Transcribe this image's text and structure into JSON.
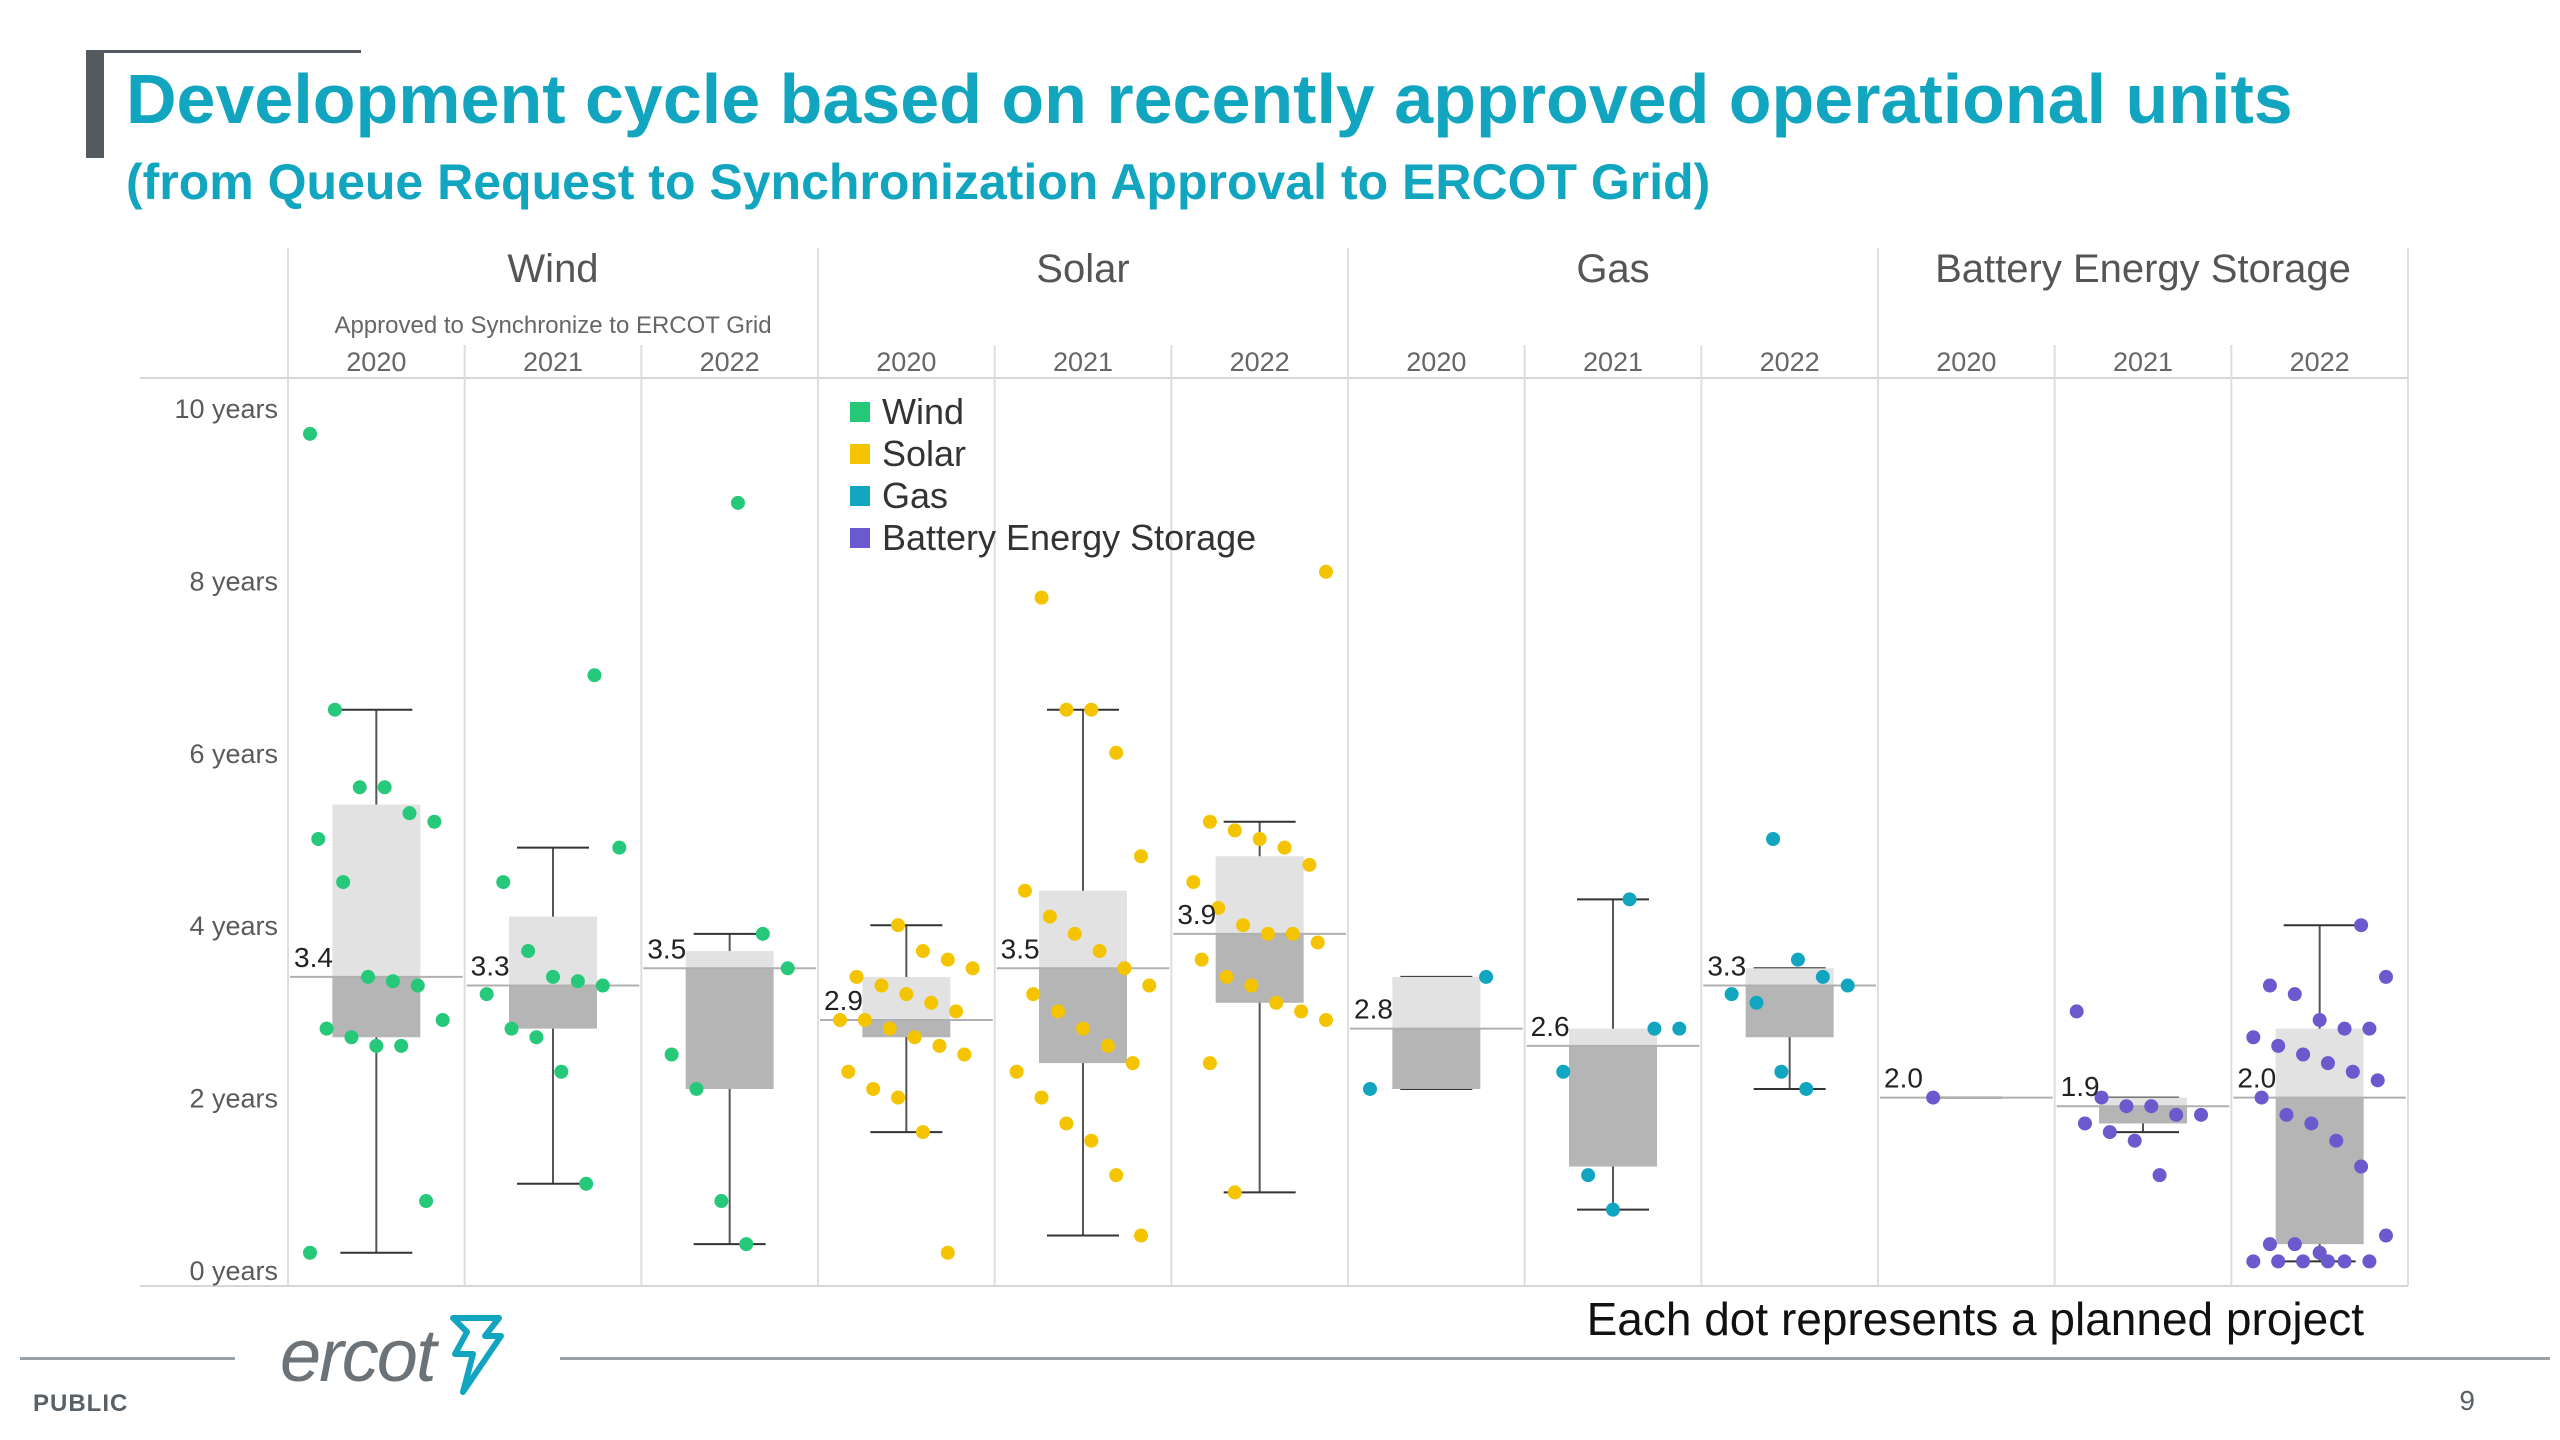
{
  "header": {
    "title": "Development cycle based on recently approved operational units",
    "subtitle": "(from Queue Request to Synchronization Approval to ERCOT Grid)"
  },
  "footer": {
    "note": "Each dot represents a planned project",
    "logo_text": "ercot",
    "classification": "PUBLIC",
    "page_number": "9"
  },
  "chart_data": {
    "type": "box",
    "title": "",
    "xlabel": "",
    "ylabel": "",
    "ylim": [
      0,
      10
    ],
    "y_ticks": [
      0,
      2,
      4,
      6,
      8,
      10
    ],
    "y_tick_labels": [
      "0 years",
      "2 years",
      "4 years",
      "6 years",
      "8 years",
      "10 years"
    ],
    "grid": true,
    "group_annotation": "Approved to Synchronize to ERCOT Grid",
    "legend": {
      "position": "top-center",
      "entries": [
        {
          "name": "Wind",
          "color": "#26c97a"
        },
        {
          "name": "Solar",
          "color": "#f5c400"
        },
        {
          "name": "Gas",
          "color": "#12a5c0"
        },
        {
          "name": "Battery Energy Storage",
          "color": "#6a5acd"
        }
      ]
    },
    "groups": [
      {
        "name": "Wind",
        "color": "#26c97a",
        "years": [
          {
            "year": "2020",
            "median": 3.4,
            "q1": 2.7,
            "q3": 5.4,
            "whisker_low": 0.2,
            "whisker_high": 6.5,
            "points": [
              9.7,
              6.5,
              5.6,
              5.6,
              5.3,
              5.2,
              5.0,
              4.5,
              3.4,
              3.35,
              3.3,
              2.9,
              2.8,
              2.7,
              2.6,
              2.6,
              0.8,
              0.2
            ]
          },
          {
            "year": "2021",
            "median": 3.3,
            "q1": 2.8,
            "q3": 4.1,
            "whisker_low": 1.0,
            "whisker_high": 4.9,
            "points": [
              6.9,
              4.9,
              4.5,
              3.7,
              3.4,
              3.35,
              3.3,
              3.2,
              2.8,
              2.7,
              2.3,
              1.0
            ]
          },
          {
            "year": "2022",
            "median": 3.5,
            "q1": 2.1,
            "q3": 3.7,
            "whisker_low": 0.3,
            "whisker_high": 3.9,
            "points": [
              8.9,
              3.9,
              3.5,
              2.5,
              2.1,
              0.8,
              0.3
            ]
          }
        ]
      },
      {
        "name": "Solar",
        "color": "#f5c400",
        "years": [
          {
            "year": "2020",
            "median": 2.9,
            "q1": 2.7,
            "q3": 3.4,
            "whisker_low": 1.6,
            "whisker_high": 4.0,
            "points": [
              4.0,
              3.7,
              3.6,
              3.5,
              3.4,
              3.3,
              3.2,
              3.1,
              3.0,
              2.9,
              2.9,
              2.8,
              2.7,
              2.6,
              2.5,
              2.3,
              2.1,
              2.0,
              1.6,
              0.2
            ]
          },
          {
            "year": "2021",
            "median": 3.5,
            "q1": 2.4,
            "q3": 4.4,
            "whisker_low": 0.4,
            "whisker_high": 6.5,
            "points": [
              7.8,
              6.5,
              6.5,
              6.0,
              4.8,
              4.4,
              4.1,
              3.9,
              3.7,
              3.5,
              3.3,
              3.2,
              3.0,
              2.8,
              2.6,
              2.4,
              2.3,
              2.0,
              1.7,
              1.5,
              1.1,
              0.4
            ]
          },
          {
            "year": "2022",
            "median": 3.9,
            "q1": 3.1,
            "q3": 4.8,
            "whisker_low": 0.9,
            "whisker_high": 5.2,
            "points": [
              8.1,
              5.2,
              5.1,
              5.0,
              4.9,
              4.7,
              4.5,
              4.2,
              4.0,
              3.9,
              3.9,
              3.8,
              3.6,
              3.4,
              3.3,
              3.1,
              3.0,
              2.9,
              2.4,
              0.9
            ]
          }
        ]
      },
      {
        "name": "Gas",
        "color": "#12a5c0",
        "years": [
          {
            "year": "2020",
            "median": 2.8,
            "q1": 2.1,
            "q3": 3.4,
            "whisker_low": 2.1,
            "whisker_high": 3.4,
            "points": [
              3.4,
              2.1
            ]
          },
          {
            "year": "2021",
            "median": 2.6,
            "q1": 1.2,
            "q3": 2.8,
            "whisker_low": 0.7,
            "whisker_high": 4.3,
            "points": [
              4.3,
              2.8,
              2.8,
              2.3,
              1.1,
              0.7
            ]
          },
          {
            "year": "2022",
            "median": 3.3,
            "q1": 2.7,
            "q3": 3.5,
            "whisker_low": 2.1,
            "whisker_high": 3.5,
            "points": [
              5.0,
              3.6,
              3.4,
              3.3,
              3.2,
              3.1,
              2.3,
              2.1
            ]
          }
        ]
      },
      {
        "name": "Battery Energy Storage",
        "color": "#6a5acd",
        "years": [
          {
            "year": "2020",
            "median": 2.0,
            "q1": 2.0,
            "q3": 2.0,
            "whisker_low": 2.0,
            "whisker_high": 2.0,
            "points": [
              2.0
            ]
          },
          {
            "year": "2021",
            "median": 1.9,
            "q1": 1.7,
            "q3": 2.0,
            "whisker_low": 1.6,
            "whisker_high": 2.0,
            "points": [
              3.0,
              2.0,
              1.9,
              1.9,
              1.8,
              1.8,
              1.7,
              1.6,
              1.5,
              1.1
            ]
          },
          {
            "year": "2022",
            "median": 2.0,
            "q1": 0.3,
            "q3": 2.8,
            "whisker_low": 0.1,
            "whisker_high": 4.0,
            "points": [
              4.0,
              3.4,
              3.3,
              3.2,
              2.9,
              2.8,
              2.8,
              2.7,
              2.6,
              2.5,
              2.4,
              2.3,
              2.2,
              2.0,
              1.8,
              1.7,
              1.5,
              1.2,
              0.4,
              0.3,
              0.3,
              0.2,
              0.1,
              0.1,
              0.1,
              0.1,
              0.1,
              0.1
            ]
          }
        ]
      }
    ]
  }
}
